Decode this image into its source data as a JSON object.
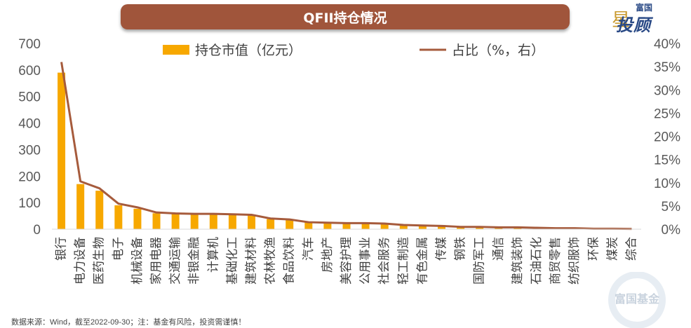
{
  "chart_data": {
    "type": "bar+line",
    "title": "QFII持仓情况",
    "categories": [
      "银行",
      "电力设备",
      "医药生物",
      "电子",
      "机械设备",
      "家用电器",
      "交通运输",
      "非银金融",
      "计算机",
      "基础化工",
      "建筑材料",
      "农林牧渔",
      "食品饮料",
      "汽车",
      "房地产",
      "美容护理",
      "公用事业",
      "社会服务",
      "轻工制造",
      "有色金属",
      "传媒",
      "钢铁",
      "国防军工",
      "通信",
      "建筑装饰",
      "石油石化",
      "商贸零售",
      "纺织服饰",
      "环保",
      "煤炭",
      "综合"
    ],
    "series": [
      {
        "name": "持仓市值（亿元）",
        "type": "bar",
        "axis": "left",
        "color": "#f7a800",
        "values": [
          590,
          170,
          145,
          90,
          77,
          60,
          57,
          55,
          55,
          53,
          52,
          38,
          36,
          25,
          23,
          22,
          22,
          20,
          15,
          13,
          12,
          9,
          8,
          7,
          6,
          5,
          4,
          3,
          2,
          2,
          1
        ]
      },
      {
        "name": "占比（%，右）",
        "type": "line",
        "axis": "right",
        "color": "#a65b3c",
        "values": [
          36.0,
          10.3,
          8.8,
          5.5,
          4.7,
          3.6,
          3.4,
          3.3,
          3.3,
          3.2,
          3.1,
          2.3,
          2.1,
          1.5,
          1.4,
          1.3,
          1.3,
          1.2,
          0.9,
          0.8,
          0.7,
          0.5,
          0.5,
          0.4,
          0.4,
          0.3,
          0.2,
          0.2,
          0.1,
          0.1,
          0.05
        ]
      }
    ],
    "ylim_left": [
      0,
      700
    ],
    "yticks_left": [
      "0",
      "100",
      "200",
      "300",
      "400",
      "500",
      "600",
      "700"
    ],
    "ylim_right": [
      0,
      40
    ],
    "yticks_right": [
      "0%",
      "5%",
      "10%",
      "15%",
      "20%",
      "25%",
      "30%",
      "35%",
      "40%"
    ],
    "legend": {
      "bar_label": "持仓市值（亿元）",
      "line_label": "占比（%，右）",
      "position": "top"
    }
  },
  "logo": {
    "small": "富国",
    "big": "投顾",
    "star": "星"
  },
  "footnote": "数据来源：Wind，截至2022-09-30；注：基金有风险，投资需谨慎！",
  "watermark": "富国基金"
}
